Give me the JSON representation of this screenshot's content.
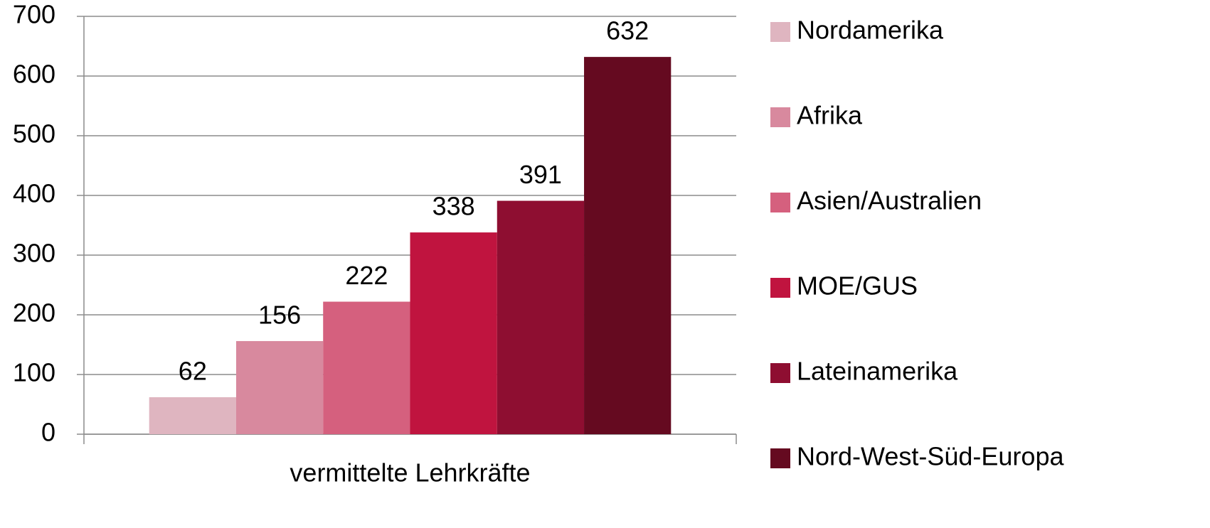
{
  "chart_data": {
    "type": "bar",
    "categories": [
      "vermittelte Lehrkräfte"
    ],
    "series": [
      {
        "name": "Nordamerika",
        "color": "#dfb5c0",
        "values": [
          62
        ]
      },
      {
        "name": "Afrika",
        "color": "#d8899e",
        "values": [
          156
        ]
      },
      {
        "name": "Asien/Australien",
        "color": "#d5607e",
        "values": [
          222
        ]
      },
      {
        "name": "MOE/GUS",
        "color": "#c0143f",
        "values": [
          338
        ]
      },
      {
        "name": "Lateinamerika",
        "color": "#8e0e31",
        "values": [
          391
        ]
      },
      {
        "name": "Nord-West-Süd-Europa",
        "color": "#650a20",
        "values": [
          632
        ]
      }
    ],
    "ylim": [
      0,
      700
    ],
    "yticks": [
      0,
      100,
      200,
      300,
      400,
      500,
      600,
      700
    ],
    "grid": true,
    "legend": "right"
  }
}
